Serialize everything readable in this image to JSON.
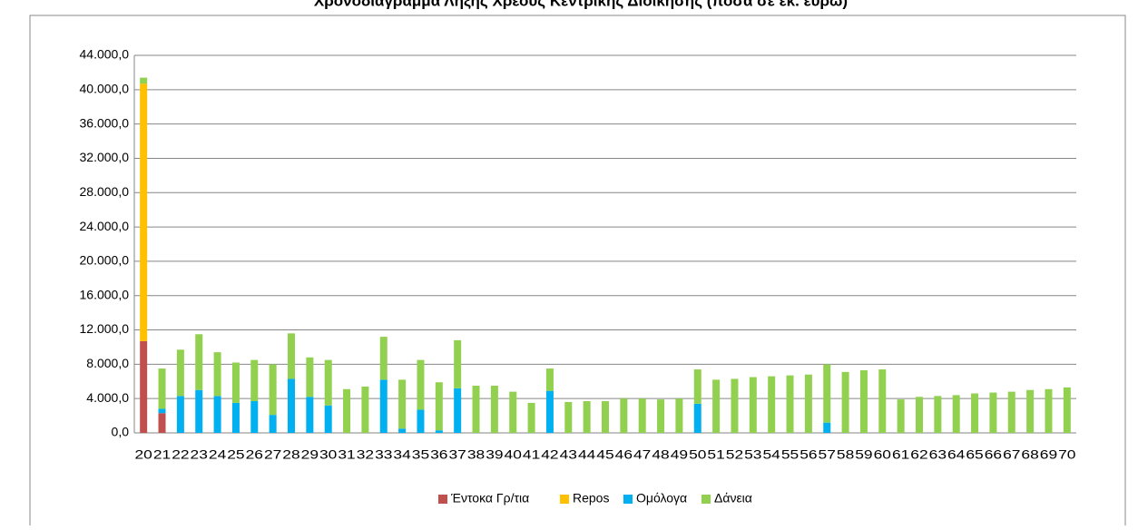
{
  "chart_data": {
    "type": "bar",
    "stacked": true,
    "title": "Χρονοδιάγραμμα Λήξης Χρέους Κεντρικής Διοίκησης (ποσά σε εκ. ευρώ)",
    "categories": [
      "20",
      "21",
      "22",
      "23",
      "24",
      "25",
      "26",
      "27",
      "28",
      "29",
      "30",
      "31",
      "32",
      "33",
      "34",
      "35",
      "36",
      "37",
      "38",
      "39",
      "40",
      "41",
      "42",
      "43",
      "44",
      "45",
      "46",
      "47",
      "48",
      "49",
      "50",
      "51",
      "52",
      "53",
      "54",
      "55",
      "56",
      "57",
      "58",
      "59",
      "60",
      "61",
      "62",
      "63",
      "64",
      "65",
      "66",
      "67",
      "68",
      "69",
      "70"
    ],
    "series": [
      {
        "name": "Έντοκα Γρ/τια",
        "color": "#c0504d",
        "values": [
          10700,
          2300,
          0,
          0,
          0,
          0,
          0,
          0,
          0,
          0,
          0,
          0,
          0,
          0,
          0,
          0,
          0,
          0,
          0,
          0,
          0,
          0,
          0,
          0,
          0,
          0,
          0,
          0,
          0,
          0,
          0,
          0,
          0,
          0,
          0,
          0,
          0,
          0,
          0,
          0,
          0,
          0,
          0,
          0,
          0,
          0,
          0,
          0,
          0,
          0,
          0
        ]
      },
      {
        "name": "Repos",
        "color": "#ffc000",
        "values": [
          30000,
          0,
          0,
          0,
          0,
          0,
          0,
          0,
          0,
          0,
          0,
          0,
          0,
          0,
          0,
          0,
          0,
          0,
          0,
          0,
          0,
          0,
          0,
          0,
          0,
          0,
          0,
          0,
          0,
          0,
          0,
          0,
          0,
          0,
          0,
          0,
          0,
          0,
          0,
          0,
          0,
          0,
          0,
          0,
          0,
          0,
          0,
          0,
          0,
          0,
          0
        ]
      },
      {
        "name": "Ομόλογα",
        "color": "#00b0f0",
        "values": [
          0,
          500,
          4300,
          5000,
          4300,
          3500,
          3700,
          2100,
          6300,
          4200,
          3200,
          0,
          0,
          6200,
          500,
          2700,
          300,
          5200,
          0,
          0,
          0,
          0,
          4900,
          0,
          0,
          0,
          0,
          0,
          0,
          0,
          3400,
          0,
          0,
          0,
          0,
          0,
          0,
          1200,
          0,
          0,
          0,
          0,
          0,
          0,
          0,
          0,
          0,
          0,
          0,
          0,
          0
        ]
      },
      {
        "name": "Δάνεια",
        "color": "#92d050",
        "values": [
          700,
          4700,
          5400,
          6500,
          5100,
          4700,
          4800,
          5900,
          5300,
          4600,
          5300,
          5100,
          5400,
          5000,
          5700,
          5800,
          5600,
          5600,
          5500,
          5500,
          4800,
          3500,
          2600,
          3600,
          3700,
          3700,
          4000,
          4000,
          3900,
          4000,
          4000,
          6200,
          6300,
          6500,
          6600,
          6700,
          6800,
          6800,
          7100,
          7300,
          7400,
          3900,
          4200,
          4300,
          4400,
          4600,
          4700,
          4800,
          5000,
          5100,
          5300
        ]
      }
    ],
    "ylim": [
      0,
      44000
    ],
    "yticks": [
      {
        "value": 0,
        "label": "0,0"
      },
      {
        "value": 4000,
        "label": "4.000,0"
      },
      {
        "value": 8000,
        "label": "8.000,0"
      },
      {
        "value": 12000,
        "label": "12.000,0"
      },
      {
        "value": 16000,
        "label": "16.000,0"
      },
      {
        "value": 20000,
        "label": "20.000,0"
      },
      {
        "value": 24000,
        "label": "24.000,0"
      },
      {
        "value": 28000,
        "label": "28.000,0"
      },
      {
        "value": 32000,
        "label": "32.000,0"
      },
      {
        "value": 36000,
        "label": "36.000,0"
      },
      {
        "value": 40000,
        "label": "40.000,0"
      },
      {
        "value": 44000,
        "label": "44.000,0"
      }
    ],
    "grid": true,
    "legend": "bottom"
  }
}
